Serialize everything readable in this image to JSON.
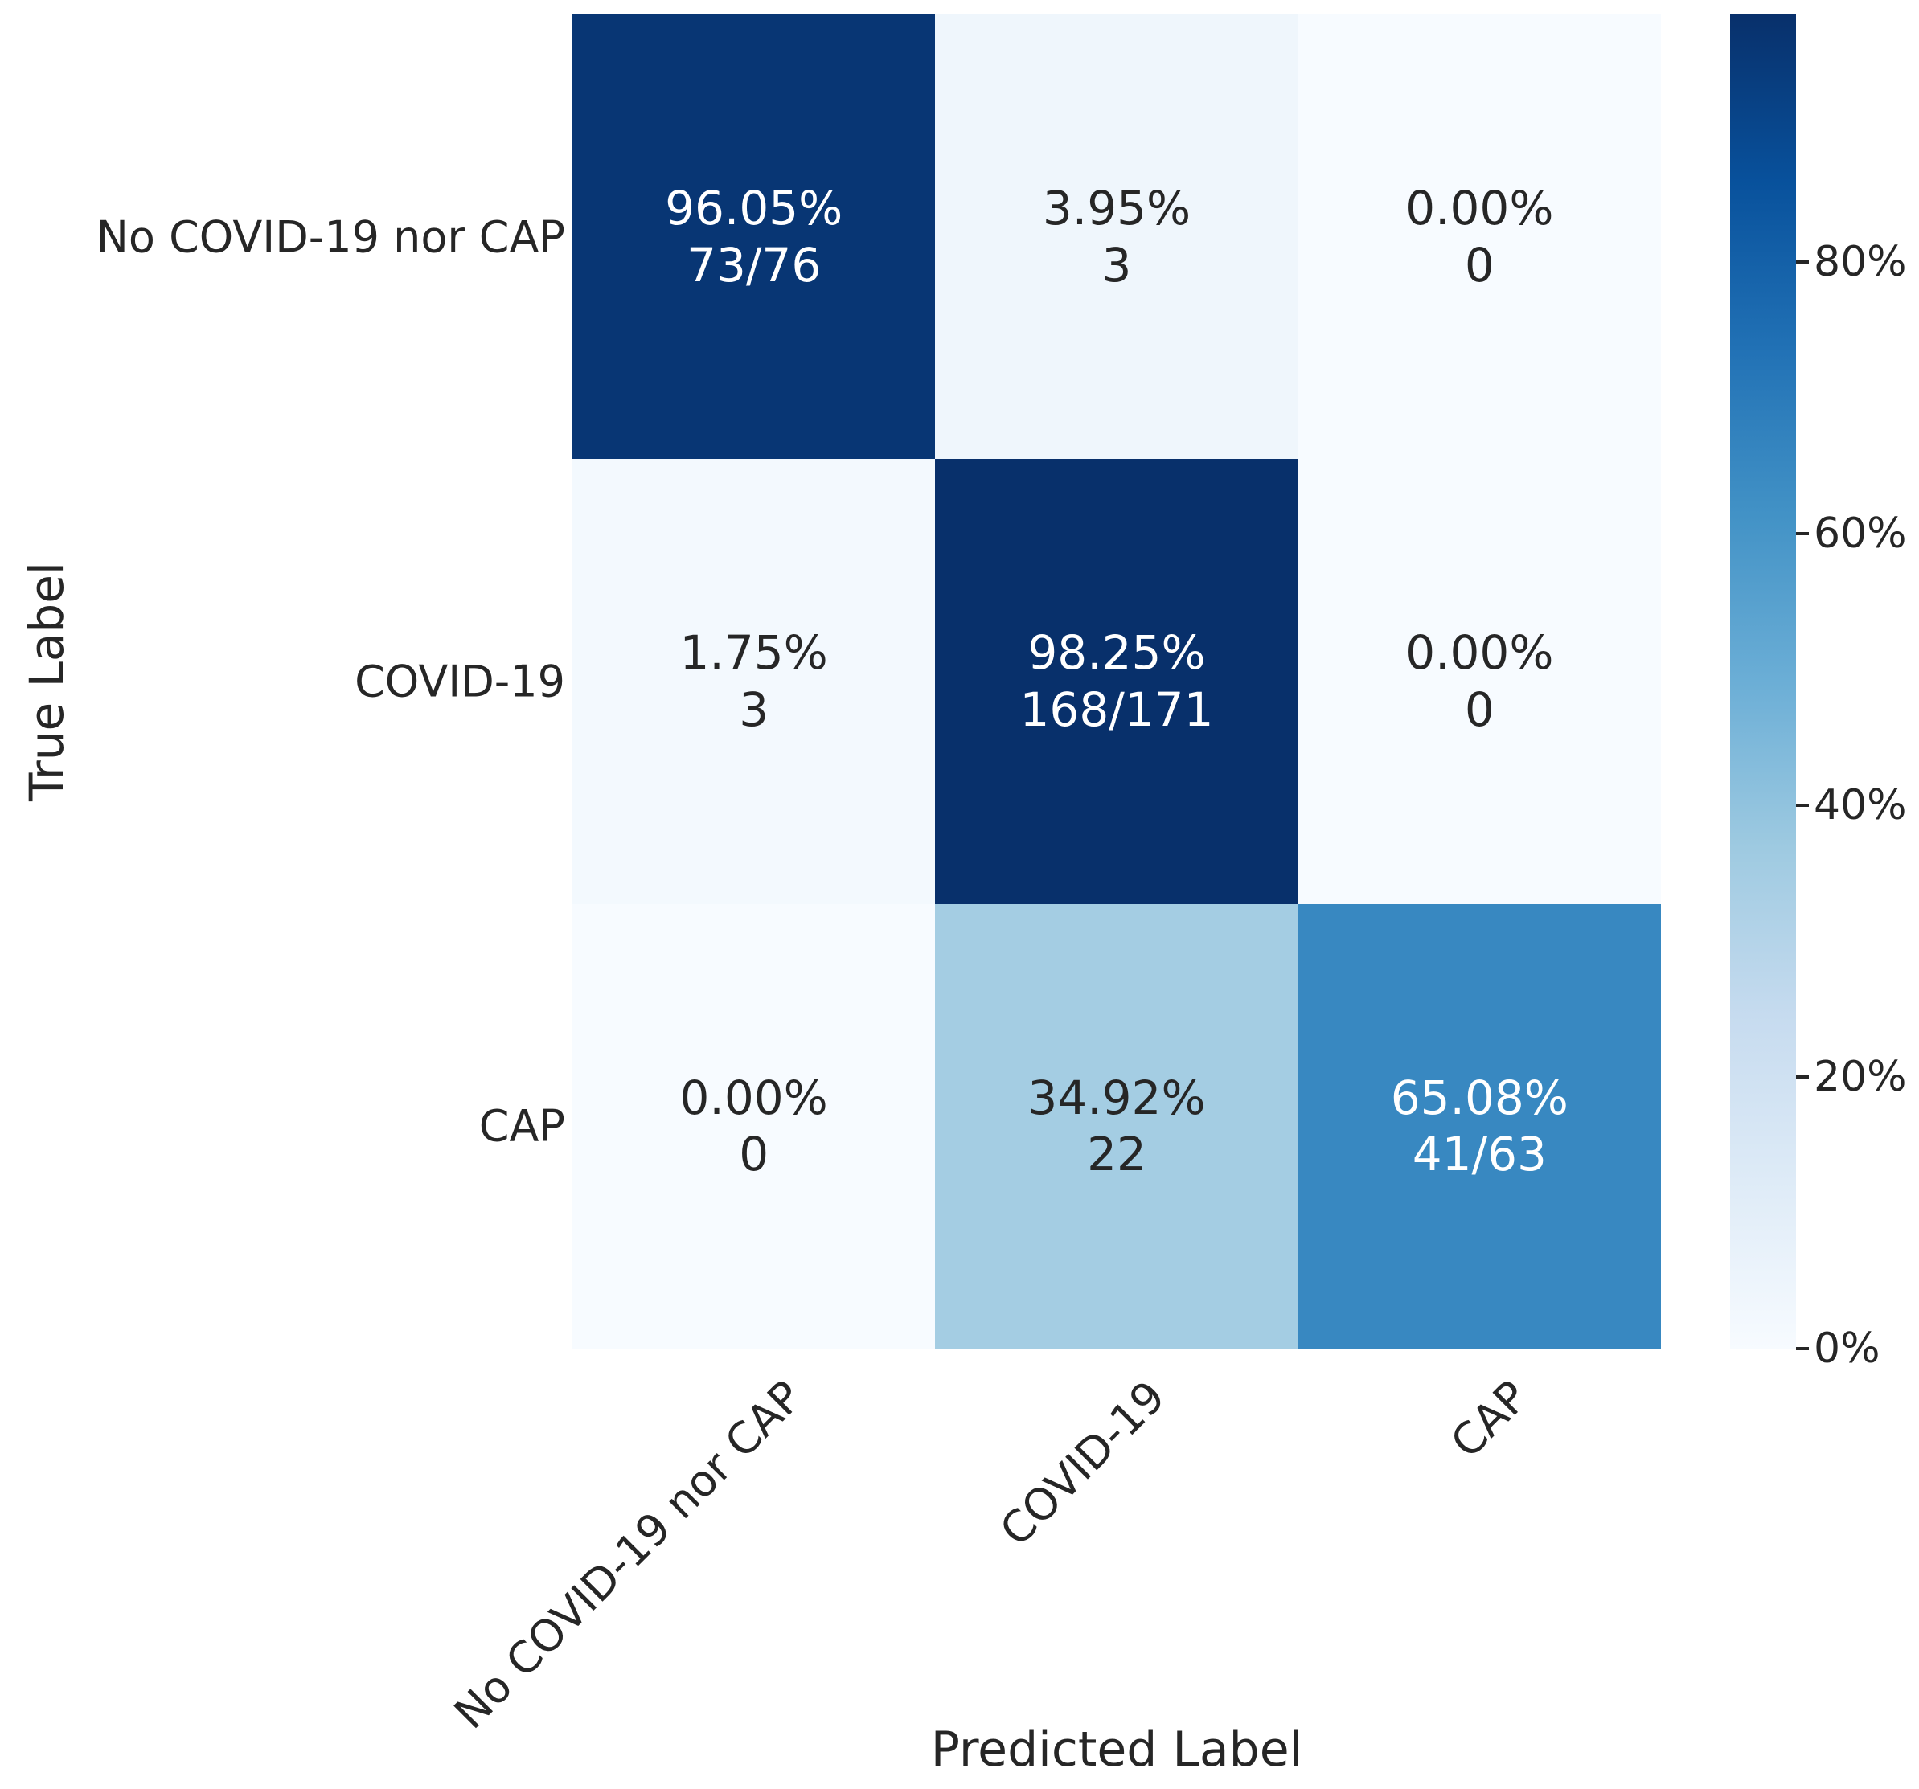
{
  "figure": {
    "background": "#ffffff",
    "text_color": "#262626"
  },
  "chart_data": {
    "type": "heatmap",
    "subtype": "confusion-matrix",
    "colormap": "Blues",
    "vmin": 0,
    "vmax": 98.25,
    "title": "",
    "xlabel": "Predicted Label",
    "ylabel": "True Label",
    "x_tick_labels": [
      "No COVID-19 nor CAP",
      "COVID-19",
      "CAP"
    ],
    "y_tick_labels": [
      "No COVID-19 nor CAP",
      "COVID-19",
      "CAP"
    ],
    "x_tick_rotation_deg": 45,
    "grid": false,
    "matrix_percent": [
      [
        96.05,
        3.95,
        0.0
      ],
      [
        1.75,
        98.25,
        0.0
      ],
      [
        0.0,
        34.92,
        65.08
      ]
    ],
    "matrix_counts": [
      [
        73,
        3,
        0
      ],
      [
        3,
        168,
        0
      ],
      [
        0,
        22,
        41
      ]
    ],
    "row_totals": [
      76,
      171,
      63
    ],
    "cells": [
      {
        "row": 0,
        "col": 0,
        "line1": "96.05%",
        "line2": "73/76",
        "value": 96.05,
        "bg": "#083674",
        "fg": "#ffffff"
      },
      {
        "row": 0,
        "col": 1,
        "line1": "3.95%",
        "line2": "3",
        "value": 3.95,
        "bg": "#eff6fc",
        "fg": "#262626"
      },
      {
        "row": 0,
        "col": 2,
        "line1": "0.00%",
        "line2": "0",
        "value": 0.0,
        "bg": "#f7fbff",
        "fg": "#262626"
      },
      {
        "row": 1,
        "col": 0,
        "line1": "1.75%",
        "line2": "3",
        "value": 1.75,
        "bg": "#f3f9fe",
        "fg": "#262626"
      },
      {
        "row": 1,
        "col": 1,
        "line1": "98.25%",
        "line2": "168/171",
        "value": 98.25,
        "bg": "#08306b",
        "fg": "#ffffff"
      },
      {
        "row": 1,
        "col": 2,
        "line1": "0.00%",
        "line2": "0",
        "value": 0.0,
        "bg": "#f7fbff",
        "fg": "#262626"
      },
      {
        "row": 2,
        "col": 0,
        "line1": "0.00%",
        "line2": "0",
        "value": 0.0,
        "bg": "#f7fbff",
        "fg": "#262626"
      },
      {
        "row": 2,
        "col": 1,
        "line1": "34.92%",
        "line2": "22",
        "value": 34.92,
        "bg": "#a4cde3",
        "fg": "#262626"
      },
      {
        "row": 2,
        "col": 2,
        "line1": "65.08%",
        "line2": "41/63",
        "value": 65.08,
        "bg": "#3888c1",
        "fg": "#ffffff"
      }
    ],
    "colorbar": {
      "position": "right",
      "tick_labels": [
        "0%",
        "20%",
        "40%",
        "60%",
        "80%"
      ],
      "tick_values": [
        0,
        20,
        40,
        60,
        80
      ],
      "gradient_stops": [
        {
          "pos": 0.0,
          "color": "#08306b"
        },
        {
          "pos": 0.125,
          "color": "#08519c"
        },
        {
          "pos": 0.25,
          "color": "#2171b5"
        },
        {
          "pos": 0.375,
          "color": "#4292c6"
        },
        {
          "pos": 0.5,
          "color": "#6baed6"
        },
        {
          "pos": 0.625,
          "color": "#9ecae1"
        },
        {
          "pos": 0.75,
          "color": "#c6dbef"
        },
        {
          "pos": 0.875,
          "color": "#deebf7"
        },
        {
          "pos": 1.0,
          "color": "#f7fbff"
        }
      ]
    }
  }
}
